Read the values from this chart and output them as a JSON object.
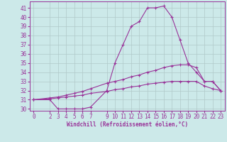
{
  "xlabel": "Windchill (Refroidissement éolien,°C)",
  "bg_color": "#cce9e9",
  "line_color": "#993399",
  "grid_color": "#b0c8c8",
  "xlim": [
    -0.5,
    23.5
  ],
  "ylim": [
    29.8,
    41.7
  ],
  "yticks": [
    30,
    31,
    32,
    33,
    34,
    35,
    36,
    37,
    38,
    39,
    40,
    41
  ],
  "xticks": [
    0,
    2,
    3,
    4,
    5,
    6,
    7,
    9,
    10,
    11,
    12,
    13,
    14,
    15,
    16,
    17,
    18,
    19,
    20,
    21,
    22,
    23
  ],
  "line1_x": [
    0,
    2,
    3,
    4,
    5,
    6,
    7,
    9,
    10,
    11,
    12,
    13,
    14,
    15,
    16,
    17,
    18,
    19,
    20,
    21,
    22,
    23
  ],
  "line1_y": [
    31.0,
    31.0,
    30.0,
    30.0,
    30.0,
    30.0,
    30.2,
    32.0,
    35.0,
    37.0,
    39.0,
    39.5,
    41.0,
    41.0,
    41.2,
    40.0,
    37.5,
    35.0,
    34.0,
    33.0,
    33.0,
    32.0
  ],
  "line2_x": [
    0,
    2,
    3,
    4,
    5,
    6,
    7,
    9,
    10,
    11,
    12,
    13,
    14,
    15,
    16,
    17,
    18,
    19,
    20,
    21,
    22,
    23
  ],
  "line2_y": [
    31.0,
    31.2,
    31.3,
    31.5,
    31.7,
    31.9,
    32.2,
    32.8,
    33.0,
    33.2,
    33.5,
    33.7,
    34.0,
    34.2,
    34.5,
    34.7,
    34.8,
    34.8,
    34.5,
    33.0,
    33.0,
    32.0
  ],
  "line3_x": [
    0,
    2,
    3,
    4,
    5,
    6,
    7,
    9,
    10,
    11,
    12,
    13,
    14,
    15,
    16,
    17,
    18,
    19,
    20,
    21,
    22,
    23
  ],
  "line3_y": [
    31.0,
    31.1,
    31.2,
    31.3,
    31.4,
    31.5,
    31.7,
    31.9,
    32.1,
    32.2,
    32.4,
    32.5,
    32.7,
    32.8,
    32.9,
    33.0,
    33.0,
    33.0,
    33.0,
    32.5,
    32.2,
    32.0
  ],
  "tick_fontsize": 5.5,
  "xlabel_fontsize": 5.5
}
